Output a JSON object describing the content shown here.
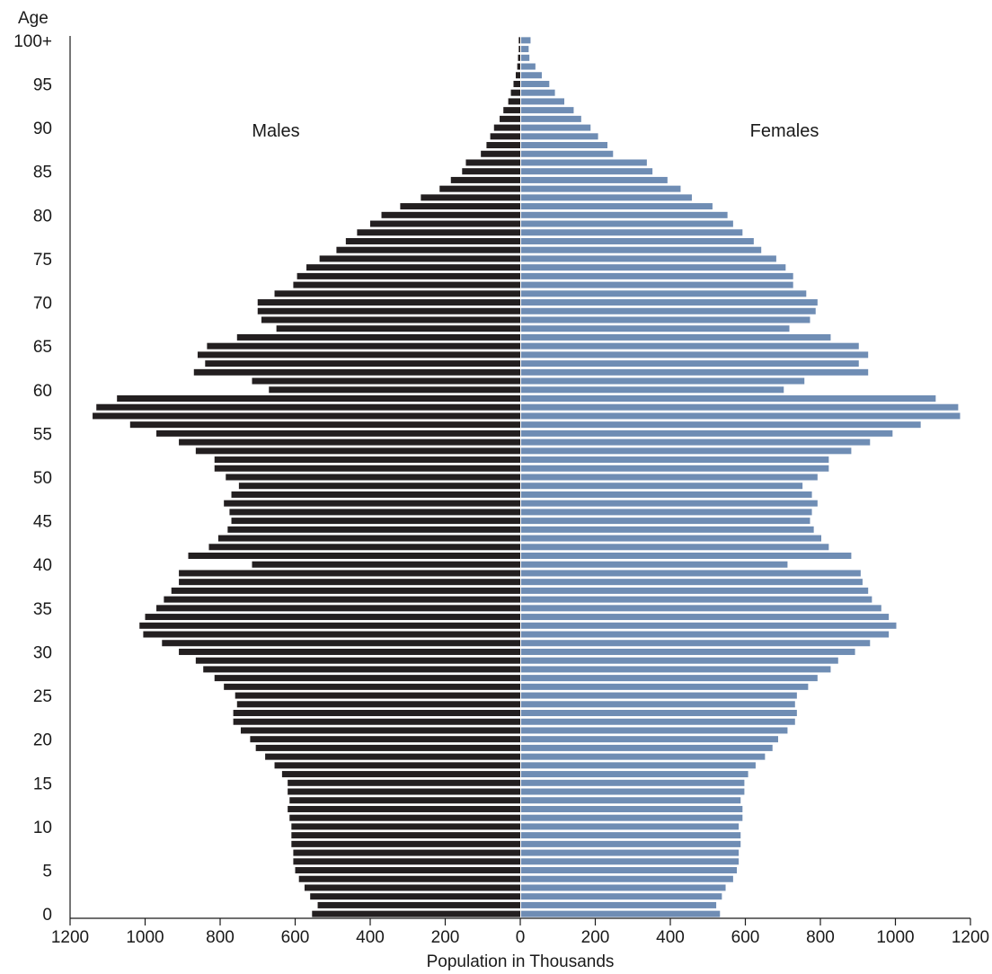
{
  "chart_data": {
    "type": "bar",
    "xlabel": "Population in Thousands",
    "ylabel": "Age",
    "x_ticks": [
      "1200",
      "1000",
      "800",
      "600",
      "400",
      "200",
      "0",
      "200",
      "400",
      "600",
      "800",
      "1000",
      "1200"
    ],
    "y_ticks": [
      "0",
      "5",
      "10",
      "15",
      "20",
      "25",
      "30",
      "35",
      "40",
      "45",
      "50",
      "55",
      "60",
      "65",
      "70",
      "75",
      "80",
      "85",
      "90",
      "95",
      "100+"
    ],
    "xlim": [
      -1200,
      1200
    ],
    "colors": {
      "males": "#231f20",
      "females": "#6f8db4"
    },
    "series": [
      {
        "name": "Males",
        "values": [
          555,
          540,
          560,
          575,
          590,
          600,
          605,
          605,
          610,
          610,
          610,
          615,
          620,
          615,
          620,
          620,
          635,
          655,
          680,
          705,
          720,
          745,
          765,
          765,
          755,
          760,
          790,
          815,
          845,
          865,
          910,
          955,
          1005,
          1015,
          1000,
          970,
          950,
          930,
          910,
          910,
          715,
          885,
          830,
          805,
          780,
          770,
          775,
          790,
          770,
          750,
          785,
          815,
          815,
          865,
          910,
          970,
          1040,
          1140,
          1130,
          1075,
          670,
          715,
          870,
          840,
          860,
          835,
          755,
          650,
          690,
          700,
          700,
          655,
          605,
          595,
          570,
          535,
          490,
          465,
          435,
          400,
          370,
          320,
          265,
          215,
          185,
          155,
          145,
          105,
          90,
          80,
          70,
          55,
          45,
          32,
          25,
          18,
          12,
          8,
          6,
          4,
          4
        ]
      },
      {
        "name": "Females",
        "values": [
          530,
          520,
          535,
          545,
          565,
          575,
          580,
          580,
          585,
          585,
          580,
          590,
          590,
          585,
          595,
          595,
          605,
          625,
          650,
          670,
          685,
          710,
          730,
          735,
          730,
          735,
          765,
          790,
          825,
          845,
          890,
          930,
          980,
          1000,
          980,
          960,
          935,
          925,
          910,
          905,
          710,
          880,
          820,
          800,
          780,
          770,
          775,
          790,
          775,
          750,
          790,
          820,
          820,
          880,
          930,
          990,
          1065,
          1170,
          1165,
          1105,
          700,
          755,
          925,
          900,
          925,
          900,
          825,
          715,
          770,
          785,
          790,
          760,
          725,
          725,
          705,
          680,
          640,
          620,
          590,
          565,
          550,
          510,
          455,
          425,
          390,
          350,
          335,
          245,
          230,
          205,
          185,
          160,
          140,
          115,
          90,
          75,
          55,
          38,
          22,
          20,
          25
        ]
      }
    ]
  }
}
